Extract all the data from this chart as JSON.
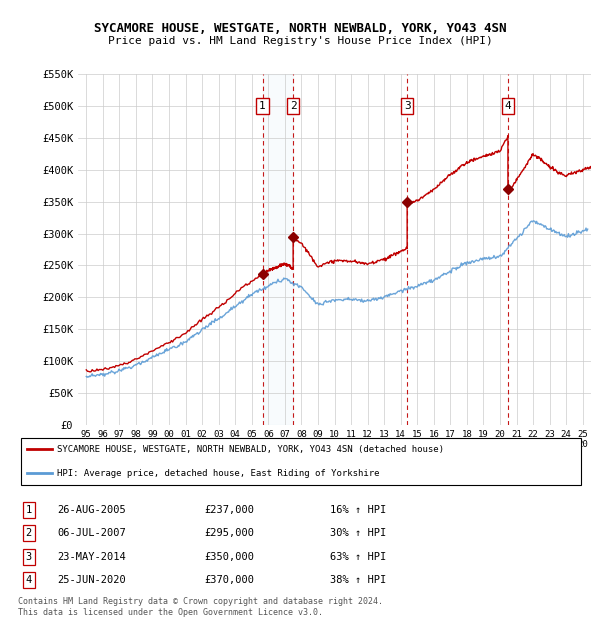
{
  "title": "SYCAMORE HOUSE, WESTGATE, NORTH NEWBALD, YORK, YO43 4SN",
  "subtitle": "Price paid vs. HM Land Registry's House Price Index (HPI)",
  "ylim": [
    0,
    550000
  ],
  "yticks": [
    0,
    50000,
    100000,
    150000,
    200000,
    250000,
    300000,
    350000,
    400000,
    450000,
    500000,
    550000
  ],
  "ytick_labels": [
    "£0",
    "£50K",
    "£100K",
    "£150K",
    "£200K",
    "£250K",
    "£300K",
    "£350K",
    "£400K",
    "£450K",
    "£500K",
    "£550K"
  ],
  "hpi_color": "#5b9bd5",
  "hpi_fill_color": "#dbeaf7",
  "price_color": "#c00000",
  "sale_marker_color": "#8b0000",
  "vline_color": "#c00000",
  "shade_color": "#dbeaf7",
  "purchases": [
    {
      "num": 1,
      "date_x": 2005.65,
      "price": 237000,
      "label": "1",
      "date_str": "26-AUG-2005",
      "pct": "16%"
    },
    {
      "num": 2,
      "date_x": 2007.5,
      "price": 295000,
      "label": "2",
      "date_str": "06-JUL-2007",
      "pct": "30%"
    },
    {
      "num": 3,
      "date_x": 2014.39,
      "price": 350000,
      "label": "3",
      "date_str": "23-MAY-2014",
      "pct": "63%"
    },
    {
      "num": 4,
      "date_x": 2020.48,
      "price": 370000,
      "label": "4",
      "date_str": "25-JUN-2020",
      "pct": "38%"
    }
  ],
  "legend_line1": "SYCAMORE HOUSE, WESTGATE, NORTH NEWBALD, YORK, YO43 4SN (detached house)",
  "legend_line2": "HPI: Average price, detached house, East Riding of Yorkshire",
  "footer": "Contains HM Land Registry data © Crown copyright and database right 2024.\nThis data is licensed under the Open Government Licence v3.0.",
  "x_start": 1995,
  "x_end": 2025.5,
  "xtick_years": [
    1995,
    1996,
    1997,
    1998,
    1999,
    2000,
    2001,
    2002,
    2003,
    2004,
    2005,
    2006,
    2007,
    2008,
    2009,
    2010,
    2011,
    2012,
    2013,
    2014,
    2015,
    2016,
    2017,
    2018,
    2019,
    2020,
    2021,
    2022,
    2023,
    2024,
    2025
  ]
}
